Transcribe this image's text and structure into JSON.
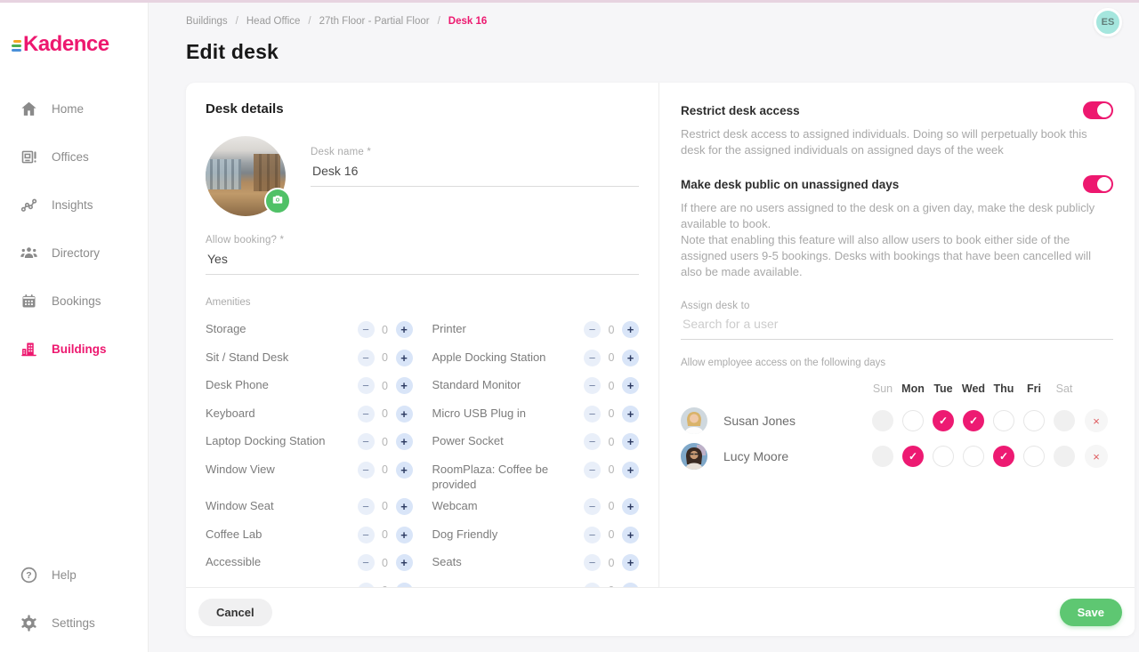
{
  "topbar": {
    "avatar_initials": "ES"
  },
  "sidebar": {
    "logo_text": "Kadence",
    "nav": [
      {
        "label": "Home",
        "icon": "home",
        "active": false
      },
      {
        "label": "Offices",
        "icon": "offices",
        "active": false
      },
      {
        "label": "Insights",
        "icon": "insights",
        "active": false
      },
      {
        "label": "Directory",
        "icon": "directory",
        "active": false
      },
      {
        "label": "Bookings",
        "icon": "bookings",
        "active": false
      },
      {
        "label": "Buildings",
        "icon": "buildings",
        "active": true
      }
    ],
    "footer_nav": [
      {
        "label": "Help",
        "icon": "help",
        "active": false
      },
      {
        "label": "Settings",
        "icon": "settings",
        "active": false
      }
    ]
  },
  "breadcrumb": {
    "items": [
      "Buildings",
      "Head Office",
      "27th Floor - Partial Floor",
      "Desk 16"
    ],
    "separator": "/"
  },
  "page": {
    "title": "Edit desk"
  },
  "desk_details": {
    "heading": "Desk details",
    "desk_name_label": "Desk name *",
    "desk_name_value": "Desk 16",
    "allow_booking_label": "Allow booking? *",
    "allow_booking_value": "Yes",
    "amenities_label": "Amenities",
    "amenities": [
      {
        "name": "Storage",
        "count": "0"
      },
      {
        "name": "Printer",
        "count": "0"
      },
      {
        "name": "Sit / Stand Desk",
        "count": "0"
      },
      {
        "name": "Apple Docking Station",
        "count": "0"
      },
      {
        "name": "Desk Phone",
        "count": "0"
      },
      {
        "name": "Standard Monitor",
        "count": "0"
      },
      {
        "name": "Keyboard",
        "count": "0"
      },
      {
        "name": "Micro USB Plug in",
        "count": "0"
      },
      {
        "name": "Laptop Docking Station",
        "count": "0"
      },
      {
        "name": "Power Socket",
        "count": "0"
      },
      {
        "name": "Window View",
        "count": "0"
      },
      {
        "name": "RoomPlaza: Coffee be provided",
        "count": "0"
      },
      {
        "name": "Window Seat",
        "count": "0"
      },
      {
        "name": "Webcam",
        "count": "0"
      },
      {
        "name": "Coffee Lab",
        "count": "0"
      },
      {
        "name": "Dog Friendly",
        "count": "0"
      },
      {
        "name": "Accessible",
        "count": "0"
      },
      {
        "name": "Seats",
        "count": "0"
      },
      {
        "name": "",
        "count": "0",
        "clipped": true
      },
      {
        "name": "",
        "count": "0",
        "clipped": true
      }
    ]
  },
  "access": {
    "restrict": {
      "title": "Restrict desk access",
      "enabled": true,
      "description": "Restrict desk access to assigned individuals. Doing so will perpetually book this desk for the assigned individuals on assigned days of the week"
    },
    "public_days": {
      "title": "Make desk public on unassigned days",
      "enabled": true,
      "description_lines": [
        "If there are no users assigned to the desk on a given day, make the desk publicly available to book.",
        "Note that enabling this feature will also allow users to book either side of the assigned users 9-5 bookings. Desks with bookings that have been cancelled will also be made available."
      ]
    },
    "assign": {
      "label": "Assign desk to",
      "placeholder": "Search for a user"
    },
    "days_section": {
      "label": "Allow employee access on the following days",
      "day_headers": [
        "Sun",
        "Mon",
        "Tue",
        "Wed",
        "Thu",
        "Fri",
        "Sat"
      ],
      "users": [
        {
          "name": "Susan Jones",
          "avatar": "susan",
          "days": [
            "disabled",
            "off",
            "on",
            "on",
            "off",
            "off",
            "disabled"
          ]
        },
        {
          "name": "Lucy Moore",
          "avatar": "lucy",
          "days": [
            "disabled",
            "on",
            "off",
            "off",
            "on",
            "off",
            "disabled"
          ]
        }
      ]
    }
  },
  "footer": {
    "cancel_label": "Cancel",
    "save_label": "Save"
  },
  "colors": {
    "brand_pink": "#ED186F",
    "save_green": "#5EC772",
    "camera_green": "#50C167",
    "remove_red": "#DE5B5E",
    "avatar_bg": "#A5E6DE",
    "top_accent": "#E7D3E0"
  }
}
